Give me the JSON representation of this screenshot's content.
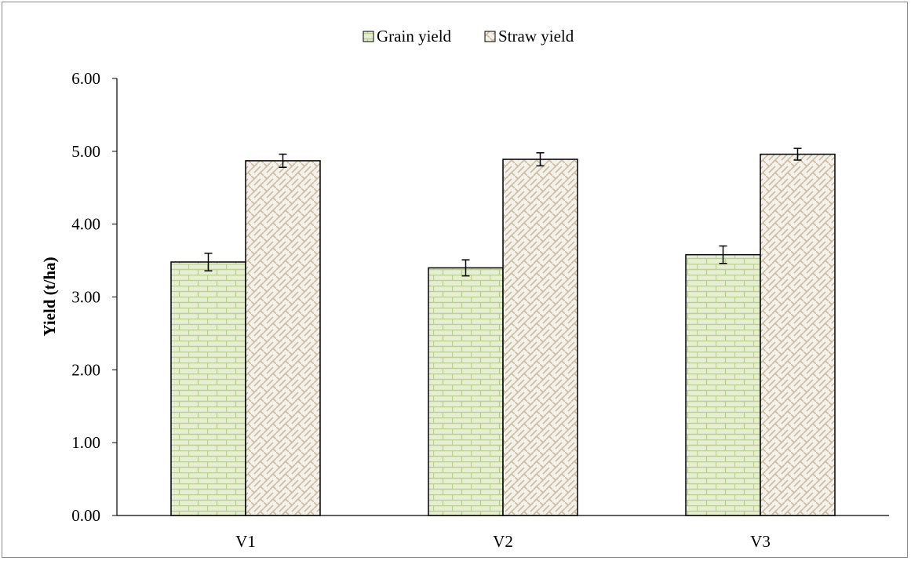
{
  "chart_data": {
    "type": "bar",
    "title": "",
    "xlabel": "",
    "ylabel": "Yield (t/ha)",
    "categories": [
      "V1",
      "V2",
      "V3"
    ],
    "ylim": [
      0,
      6
    ],
    "yticks": [
      "0.00",
      "1.00",
      "2.00",
      "3.00",
      "4.00",
      "5.00",
      "6.00"
    ],
    "grid": false,
    "legend_position": "top-center",
    "series": [
      {
        "name": "Grain yield",
        "values": [
          3.48,
          3.4,
          3.58
        ],
        "errors": [
          0.12,
          0.11,
          0.12
        ],
        "fill_color": "#e6efd4",
        "pattern_color": "#bcd08f"
      },
      {
        "name": "Straw yield",
        "values": [
          4.87,
          4.89,
          4.96
        ],
        "errors": [
          0.09,
          0.09,
          0.08
        ],
        "fill_color": "#f4f1ea",
        "pattern_color": "#c9bea2"
      }
    ]
  }
}
